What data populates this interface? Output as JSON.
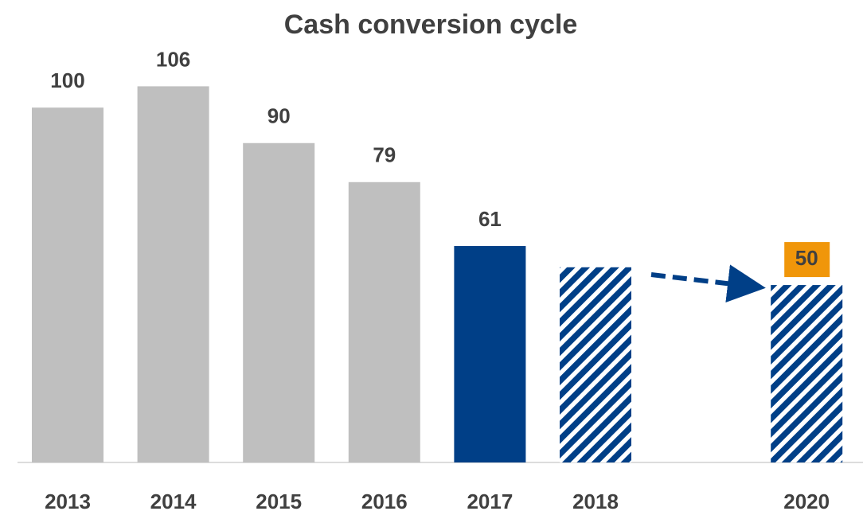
{
  "chart_data": {
    "type": "bar",
    "title": "Cash conversion cycle",
    "categories": [
      "2013",
      "2014",
      "2015",
      "2016",
      "2017",
      "2018",
      null,
      "2020"
    ],
    "values": [
      100,
      106,
      90,
      79,
      61,
      55,
      null,
      50
    ],
    "value_labels": [
      "100",
      "106",
      "90",
      "79",
      "61",
      null,
      null,
      "50"
    ],
    "colors": [
      "#bfbfbf",
      "#bfbfbf",
      "#bfbfbf",
      "#bfbfbf",
      "#003f87",
      "#003f87",
      null,
      "#003f87"
    ],
    "hatched": [
      false,
      false,
      false,
      false,
      false,
      true,
      false,
      true
    ],
    "label_backgrounds": [
      null,
      null,
      null,
      null,
      null,
      null,
      null,
      "#f0960a"
    ],
    "ylim": [
      0,
      120
    ]
  }
}
